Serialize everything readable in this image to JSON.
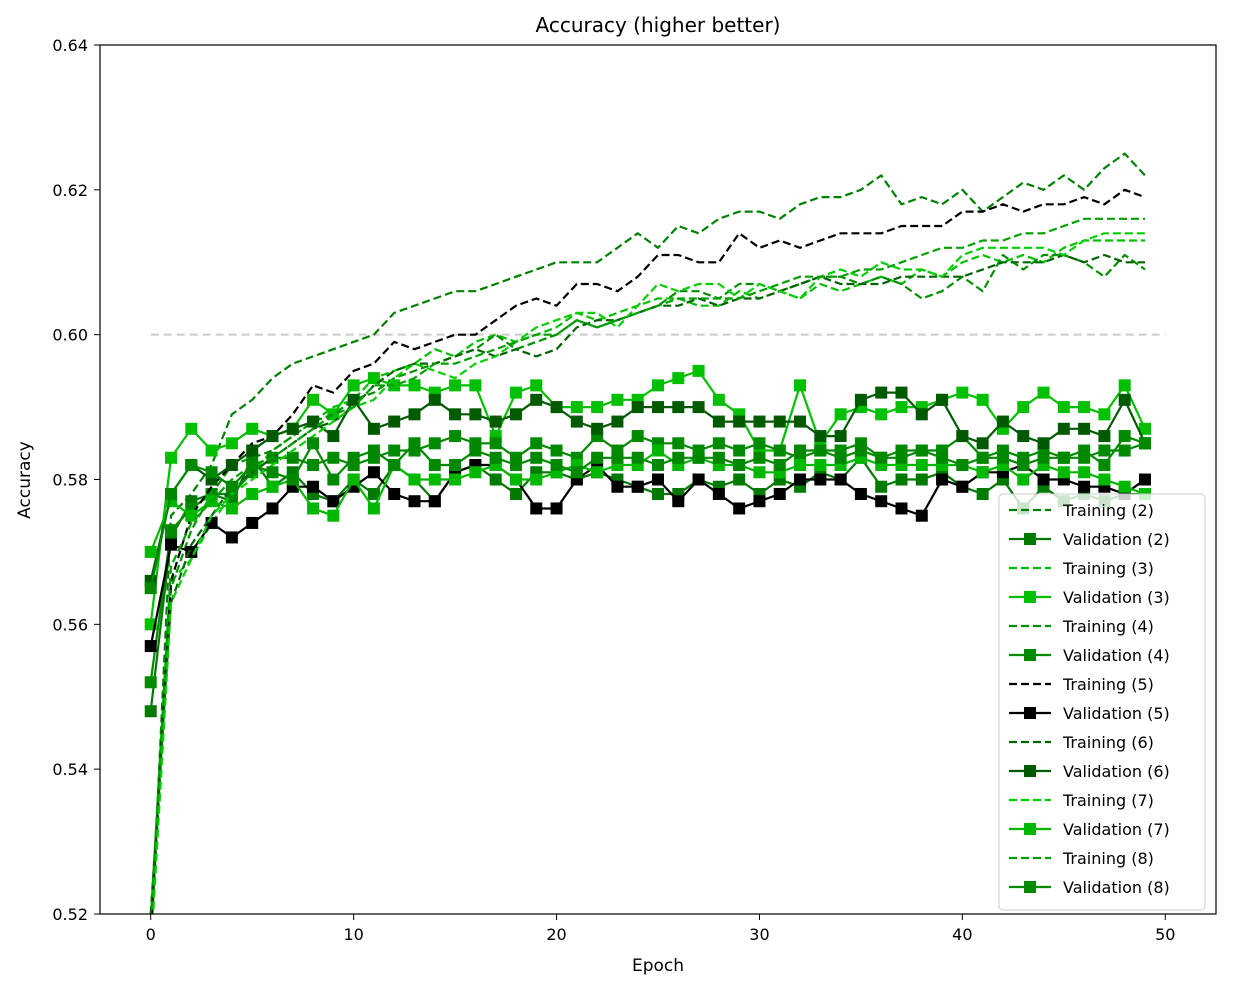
{
  "chart_data": {
    "type": "line",
    "title": "Accuracy (higher better)",
    "xlabel": "Epoch",
    "ylabel": "Accuracy",
    "xlim": [
      -2.5,
      52.5
    ],
    "ylim": [
      0.52,
      0.64
    ],
    "xticks": [
      0,
      10,
      20,
      30,
      40,
      50
    ],
    "xtick_labels": [
      "0",
      "10",
      "20",
      "30",
      "40",
      "50"
    ],
    "yticks": [
      0.52,
      0.54,
      0.56,
      0.58,
      0.6,
      0.62,
      0.64
    ],
    "ytick_labels": [
      "0.52",
      "0.54",
      "0.56",
      "0.58",
      "0.60",
      "0.62",
      "0.64"
    ],
    "grid": false,
    "legend_position": "bottom-right",
    "reference_line": {
      "y": 0.6,
      "x_range": [
        0,
        50
      ],
      "color": "#cccccc",
      "style": "dashed"
    },
    "series": [
      {
        "name": "Training (2)",
        "color": "#008000",
        "style": "dashed",
        "marker": "none",
        "values": [
          0.515,
          0.575,
          0.578,
          0.582,
          0.589,
          0.591,
          0.594,
          0.596,
          0.597,
          0.598,
          0.599,
          0.6,
          0.603,
          0.604,
          0.605,
          0.606,
          0.606,
          0.607,
          0.608,
          0.609,
          0.61,
          0.61,
          0.61,
          0.612,
          0.614,
          0.612,
          0.615,
          0.614,
          0.616,
          0.617,
          0.617,
          0.616,
          0.618,
          0.619,
          0.619,
          0.62,
          0.622,
          0.618,
          0.619,
          0.618,
          0.62,
          0.617,
          0.619,
          0.621,
          0.62,
          0.622,
          0.62,
          0.623,
          0.625,
          0.622
        ]
      },
      {
        "name": "Validation (2)",
        "color": "#007a00",
        "style": "solid",
        "marker": "square",
        "values": [
          0.548,
          0.572,
          0.577,
          0.578,
          0.577,
          0.583,
          0.579,
          0.581,
          0.578,
          0.577,
          0.58,
          0.578,
          0.582,
          0.58,
          0.577,
          0.581,
          0.582,
          0.58,
          0.578,
          0.581,
          0.581,
          0.58,
          0.581,
          0.58,
          0.579,
          0.578,
          0.578,
          0.58,
          0.579,
          0.58,
          0.578,
          0.58,
          0.579,
          0.581,
          0.58,
          0.583,
          0.579,
          0.58,
          0.58,
          0.581,
          0.579,
          0.578,
          0.58,
          0.576,
          0.579,
          0.577,
          0.578,
          0.577,
          0.578,
          0.578
        ]
      },
      {
        "name": "Training (3)",
        "color": "#00c000",
        "style": "dashed",
        "marker": "none",
        "values": [
          0.518,
          0.566,
          0.569,
          0.574,
          0.578,
          0.581,
          0.584,
          0.586,
          0.588,
          0.59,
          0.591,
          0.594,
          0.595,
          0.596,
          0.598,
          0.597,
          0.599,
          0.6,
          0.599,
          0.6,
          0.601,
          0.603,
          0.602,
          0.603,
          0.604,
          0.605,
          0.605,
          0.604,
          0.604,
          0.606,
          0.605,
          0.606,
          0.605,
          0.607,
          0.606,
          0.607,
          0.608,
          0.607,
          0.609,
          0.608,
          0.61,
          0.611,
          0.61,
          0.611,
          0.61,
          0.612,
          0.613,
          0.613,
          0.613,
          0.613
        ]
      },
      {
        "name": "Validation (3)",
        "color": "#00c000",
        "style": "solid",
        "marker": "square",
        "values": [
          0.56,
          0.583,
          0.587,
          0.584,
          0.585,
          0.587,
          0.586,
          0.587,
          0.591,
          0.589,
          0.593,
          0.594,
          0.593,
          0.593,
          0.592,
          0.593,
          0.593,
          0.586,
          0.592,
          0.593,
          0.59,
          0.59,
          0.59,
          0.591,
          0.591,
          0.593,
          0.594,
          0.595,
          0.591,
          0.589,
          0.584,
          0.584,
          0.593,
          0.585,
          0.589,
          0.59,
          0.589,
          0.59,
          0.59,
          0.591,
          0.592,
          0.591,
          0.587,
          0.59,
          0.592,
          0.59,
          0.59,
          0.589,
          0.593,
          0.587
        ]
      },
      {
        "name": "Training (4)",
        "color": "#009000",
        "style": "dashed",
        "marker": "none",
        "values": [
          0.516,
          0.565,
          0.573,
          0.578,
          0.582,
          0.583,
          0.584,
          0.586,
          0.588,
          0.589,
          0.591,
          0.592,
          0.594,
          0.595,
          0.596,
          0.597,
          0.598,
          0.6,
          0.598,
          0.599,
          0.6,
          0.602,
          0.601,
          0.602,
          0.603,
          0.604,
          0.606,
          0.606,
          0.605,
          0.607,
          0.607,
          0.606,
          0.607,
          0.608,
          0.608,
          0.607,
          0.608,
          0.607,
          0.605,
          0.606,
          0.608,
          0.606,
          0.611,
          0.609,
          0.611,
          0.611,
          0.61,
          0.608,
          0.611,
          0.609
        ]
      },
      {
        "name": "Validation (4)",
        "color": "#008a00",
        "style": "solid",
        "marker": "square",
        "values": [
          0.552,
          0.573,
          0.576,
          0.578,
          0.578,
          0.581,
          0.583,
          0.583,
          0.582,
          0.583,
          0.582,
          0.583,
          0.584,
          0.584,
          0.585,
          0.586,
          0.585,
          0.585,
          0.583,
          0.585,
          0.584,
          0.583,
          0.586,
          0.584,
          0.586,
          0.585,
          0.585,
          0.584,
          0.585,
          0.584,
          0.585,
          0.584,
          0.583,
          0.584,
          0.584,
          0.585,
          0.583,
          0.584,
          0.584,
          0.584,
          0.586,
          0.583,
          0.584,
          0.583,
          0.584,
          0.583,
          0.584,
          0.582,
          0.586,
          0.585
        ]
      },
      {
        "name": "Training (5)",
        "color": "#000000",
        "style": "dashed",
        "marker": "none",
        "values": [
          0.518,
          0.566,
          0.575,
          0.579,
          0.582,
          0.585,
          0.586,
          0.589,
          0.593,
          0.592,
          0.595,
          0.596,
          0.599,
          0.598,
          0.599,
          0.6,
          0.6,
          0.602,
          0.604,
          0.605,
          0.604,
          0.607,
          0.607,
          0.606,
          0.608,
          0.611,
          0.611,
          0.61,
          0.61,
          0.614,
          0.612,
          0.613,
          0.612,
          0.613,
          0.614,
          0.614,
          0.614,
          0.615,
          0.615,
          0.615,
          0.617,
          0.617,
          0.618,
          0.617,
          0.618,
          0.618,
          0.619,
          0.618,
          0.62,
          0.619
        ]
      },
      {
        "name": "Validation (5)",
        "color": "#000000",
        "style": "solid",
        "marker": "square",
        "values": [
          0.557,
          0.571,
          0.57,
          0.574,
          0.572,
          0.574,
          0.576,
          0.579,
          0.579,
          0.577,
          0.579,
          0.581,
          0.578,
          0.577,
          0.577,
          0.581,
          0.582,
          0.582,
          0.58,
          0.576,
          0.576,
          0.58,
          0.582,
          0.579,
          0.579,
          0.58,
          0.577,
          0.58,
          0.578,
          0.576,
          0.577,
          0.578,
          0.58,
          0.58,
          0.58,
          0.578,
          0.577,
          0.576,
          0.575,
          0.58,
          0.579,
          0.581,
          0.581,
          0.582,
          0.58,
          0.58,
          0.579,
          0.579,
          0.578,
          0.58
        ]
      },
      {
        "name": "Training (6)",
        "color": "#006400",
        "style": "dashed",
        "marker": "none",
        "values": [
          0.52,
          0.563,
          0.571,
          0.575,
          0.579,
          0.581,
          0.583,
          0.585,
          0.587,
          0.588,
          0.59,
          0.593,
          0.595,
          0.596,
          0.596,
          0.597,
          0.598,
          0.597,
          0.598,
          0.597,
          0.598,
          0.601,
          0.602,
          0.602,
          0.603,
          0.604,
          0.604,
          0.605,
          0.604,
          0.605,
          0.605,
          0.606,
          0.607,
          0.608,
          0.607,
          0.607,
          0.607,
          0.608,
          0.608,
          0.608,
          0.608,
          0.609,
          0.61,
          0.61,
          0.61,
          0.611,
          0.61,
          0.611,
          0.61,
          0.61
        ]
      },
      {
        "name": "Validation (6)",
        "color": "#005a00",
        "style": "solid",
        "marker": "square",
        "values": [
          0.566,
          0.578,
          0.582,
          0.58,
          0.582,
          0.584,
          0.586,
          0.587,
          0.588,
          0.586,
          0.591,
          0.587,
          0.588,
          0.589,
          0.591,
          0.589,
          0.589,
          0.588,
          0.589,
          0.591,
          0.59,
          0.588,
          0.587,
          0.588,
          0.59,
          0.59,
          0.59,
          0.59,
          0.588,
          0.588,
          0.588,
          0.588,
          0.588,
          0.586,
          0.586,
          0.591,
          0.592,
          0.592,
          0.589,
          0.591,
          0.586,
          0.585,
          0.588,
          0.586,
          0.585,
          0.587,
          0.587,
          0.586,
          0.591,
          0.585
        ]
      },
      {
        "name": "Training (7)",
        "color": "#00d000",
        "style": "dashed",
        "marker": "none",
        "values": [
          0.514,
          0.563,
          0.569,
          0.575,
          0.578,
          0.58,
          0.582,
          0.584,
          0.586,
          0.588,
          0.59,
          0.591,
          0.594,
          0.596,
          0.595,
          0.594,
          0.596,
          0.597,
          0.599,
          0.601,
          0.602,
          0.603,
          0.603,
          0.601,
          0.604,
          0.607,
          0.606,
          0.607,
          0.607,
          0.605,
          0.607,
          0.606,
          0.605,
          0.608,
          0.609,
          0.608,
          0.61,
          0.609,
          0.609,
          0.608,
          0.611,
          0.612,
          0.612,
          0.612,
          0.612,
          0.611,
          0.613,
          0.614,
          0.614,
          0.614
        ]
      },
      {
        "name": "Validation (7)",
        "color": "#00b800",
        "style": "solid",
        "marker": "square",
        "values": [
          0.57,
          0.577,
          0.575,
          0.577,
          0.576,
          0.578,
          0.579,
          0.58,
          0.576,
          0.575,
          0.58,
          0.576,
          0.582,
          0.58,
          0.58,
          0.58,
          0.581,
          0.582,
          0.58,
          0.58,
          0.581,
          0.582,
          0.581,
          0.582,
          0.582,
          0.584,
          0.582,
          0.583,
          0.582,
          0.582,
          0.581,
          0.581,
          0.582,
          0.582,
          0.582,
          0.583,
          0.582,
          0.582,
          0.582,
          0.582,
          0.582,
          0.581,
          0.582,
          0.58,
          0.582,
          0.581,
          0.581,
          0.58,
          0.579,
          0.578
        ]
      },
      {
        "name": "Training (8)",
        "color": "#00a000",
        "style": "dashed",
        "marker": "none",
        "values": [
          0.519,
          0.568,
          0.574,
          0.577,
          0.58,
          0.582,
          0.583,
          0.585,
          0.587,
          0.589,
          0.59,
          0.593,
          0.593,
          0.594,
          0.596,
          0.596,
          0.597,
          0.598,
          0.599,
          0.6,
          0.6,
          0.602,
          0.601,
          0.602,
          0.603,
          0.604,
          0.605,
          0.605,
          0.605,
          0.605,
          0.606,
          0.607,
          0.608,
          0.608,
          0.608,
          0.609,
          0.609,
          0.61,
          0.611,
          0.612,
          0.612,
          0.613,
          0.613,
          0.614,
          0.614,
          0.615,
          0.616,
          0.616,
          0.616,
          0.616
        ]
      },
      {
        "name": "Validation (8)",
        "color": "#008800",
        "style": "solid",
        "marker": "square",
        "values": [
          0.565,
          0.578,
          0.582,
          0.581,
          0.579,
          0.582,
          0.581,
          0.58,
          0.585,
          0.58,
          0.583,
          0.584,
          0.582,
          0.585,
          0.582,
          0.582,
          0.584,
          0.583,
          0.582,
          0.583,
          0.582,
          0.581,
          0.583,
          0.583,
          0.583,
          0.582,
          0.583,
          0.583,
          0.583,
          0.582,
          0.583,
          0.582,
          0.584,
          0.584,
          0.583,
          0.584,
          0.583,
          0.583,
          0.584,
          0.583,
          0.582,
          0.583,
          0.583,
          0.582,
          0.583,
          0.583,
          0.583,
          0.584,
          0.584,
          0.585
        ]
      }
    ]
  }
}
